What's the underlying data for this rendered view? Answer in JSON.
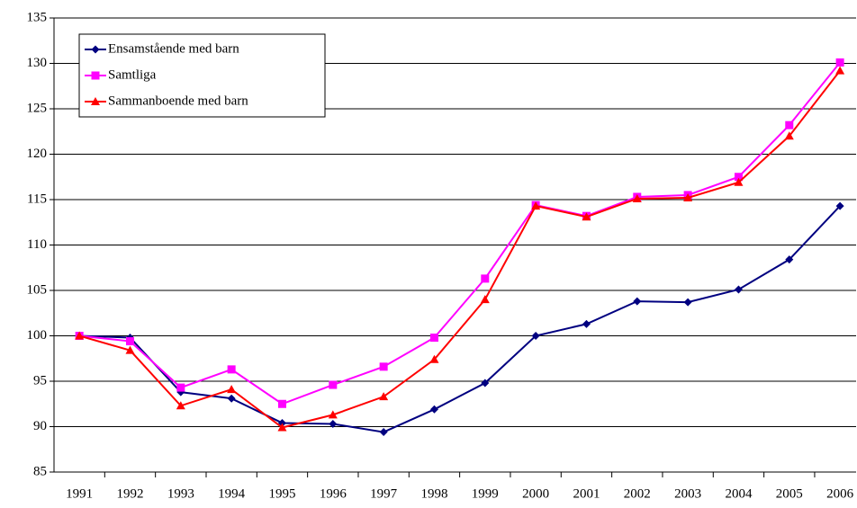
{
  "chart_data": {
    "type": "line",
    "categories": [
      "1991",
      "1992",
      "1993",
      "1994",
      "1995",
      "1996",
      "1997",
      "1998",
      "1999",
      "2000",
      "2001",
      "2002",
      "2003",
      "2004",
      "2005",
      "2006"
    ],
    "series": [
      {
        "name": "Ensamstående med barn",
        "color": "#000080",
        "marker": "diamond",
        "values": [
          100,
          99.8,
          93.8,
          93.1,
          90.4,
          90.3,
          89.4,
          91.9,
          94.8,
          100,
          101.3,
          103.8,
          103.7,
          105.1,
          108.4,
          114.3
        ]
      },
      {
        "name": "Samtliga",
        "color": "#ff00ff",
        "marker": "square",
        "values": [
          100,
          99.4,
          94.3,
          96.3,
          92.5,
          94.6,
          96.6,
          99.8,
          106.3,
          114.4,
          113.2,
          115.3,
          115.5,
          117.5,
          123.2,
          130.1
        ]
      },
      {
        "name": "Sammanboende med barn",
        "color": "#ff0000",
        "marker": "triangle",
        "values": [
          100,
          98.4,
          92.3,
          94.1,
          89.9,
          91.3,
          93.3,
          97.4,
          104,
          114.3,
          113.1,
          115.1,
          115.2,
          116.9,
          122,
          129.2
        ]
      }
    ],
    "ylim": [
      85,
      135
    ],
    "yticks": [
      85,
      90,
      95,
      100,
      105,
      110,
      115,
      120,
      125,
      130,
      135
    ],
    "grid": true,
    "legend": "upper left"
  }
}
